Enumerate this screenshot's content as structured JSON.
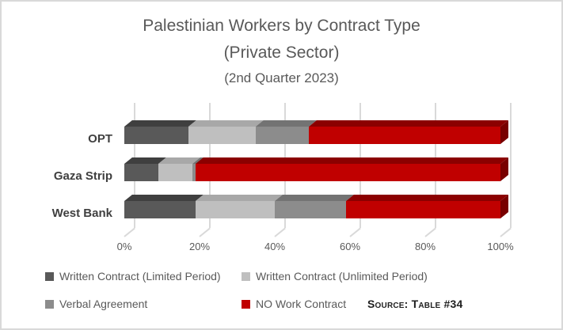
{
  "title": {
    "line1": "Palestinian Workers by Contract Type",
    "line2": "(Private Sector)",
    "line3": "(2nd Quarter 2023)"
  },
  "chart_data": {
    "type": "bar",
    "orientation": "horizontal",
    "stacked": true,
    "units": "percent",
    "categories": [
      "OPT",
      "Gaza Strip",
      "West Bank"
    ],
    "series": [
      {
        "name": "Written Contract (Limited Period)",
        "color": "#595959",
        "bevel_color": "#3f3f3f",
        "cap_color": "#333333",
        "values": [
          17,
          9,
          19
        ]
      },
      {
        "name": "Written Contract (Unlimited Period)",
        "color": "#bfbfbf",
        "bevel_color": "#a8a8a8",
        "cap_color": "#999999",
        "values": [
          18,
          9,
          21
        ]
      },
      {
        "name": "Verbal Agreement",
        "color": "#8c8c8c",
        "bevel_color": "#737373",
        "cap_color": "#666666",
        "values": [
          14,
          1,
          19
        ]
      },
      {
        "name": "NO Work Contract",
        "color": "#c00000",
        "bevel_color": "#8b0000",
        "cap_color": "#780000",
        "values": [
          51,
          81,
          41
        ]
      }
    ],
    "x_ticks": [
      "0%",
      "20%",
      "40%",
      "60%",
      "80%",
      "100%"
    ],
    "xlim": [
      0,
      100
    ],
    "grid": true,
    "legend_position": "bottom"
  },
  "source": {
    "text": "Source: Table #34"
  },
  "colors": {
    "title_text": "#595959",
    "category_text": "#3f3f3f",
    "tick_text": "#595959",
    "legend_text": "#595959",
    "source_text": "#1f1f1f",
    "gridline": "#d9d9d9",
    "frame_border": "#d9d9d9",
    "background": "#ffffff"
  }
}
